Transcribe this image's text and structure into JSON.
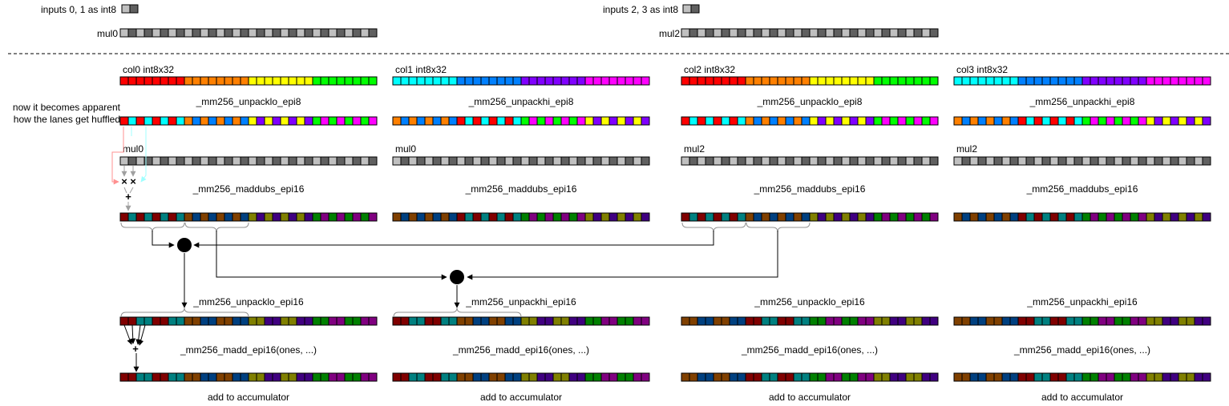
{
  "header": {
    "inputs_a_label": "inputs 0, 1 as int8",
    "inputs_b_label": "inputs 2, 3 as int8",
    "mul0_label": "mul0",
    "mul2_label": "mul2"
  },
  "annotation": {
    "line1": "now it becomes apparent",
    "line2": "how the lanes get huffled"
  },
  "columns": [
    {
      "title": "col0 int8x32",
      "unpack8": "_mm256_unpacklo_epi8",
      "mul": "mul0",
      "maddubs": "_mm256_maddubs_epi16",
      "unpack16": "_mm256_unpacklo_epi16",
      "madd": "_mm256_madd_epi16(ones, ...)",
      "acc": "add to accumulator"
    },
    {
      "title": "col1 int8x32",
      "unpack8": "_mm256_unpackhi_epi8",
      "mul": "mul0",
      "maddubs": "_mm256_maddubs_epi16",
      "unpack16": "_mm256_unpackhi_epi16",
      "madd": "_mm256_madd_epi16(ones, ...)",
      "acc": "add to accumulator"
    },
    {
      "title": "col2 int8x32",
      "unpack8": "_mm256_unpacklo_epi8",
      "mul": "mul2",
      "maddubs": "_mm256_maddubs_epi16",
      "unpack16": "_mm256_unpacklo_epi16",
      "madd": "_mm256_madd_epi16(ones, ...)",
      "acc": "add to accumulator"
    },
    {
      "title": "col3 int8x32",
      "unpack8": "_mm256_unpackhi_epi8",
      "mul": "mul2",
      "maddubs": "_mm256_maddubs_epi16",
      "unpack16": "_mm256_unpackhi_epi16",
      "madd": "_mm256_madd_epi16(ones, ...)",
      "acc": "add to accumulator"
    }
  ],
  "op_symbols": {
    "multiply": "×",
    "add": "+"
  },
  "colors": {
    "red": "#ff0000",
    "orange": "#ff8000",
    "yellow": "#ffff00",
    "green": "#00ff00",
    "cyan": "#00ffff",
    "blue": "#0080ff",
    "violet": "#8000ff",
    "magenta": "#ff00ff",
    "gray_light": "#c0c0c0",
    "gray_dark": "#606060",
    "dark_red": "#800000",
    "dark_orange": "#804000",
    "dark_olive": "#808000",
    "dark_green": "#008000",
    "teal": "#008080",
    "navy": "#004080",
    "purple": "#400080",
    "dark_magenta": "#800080",
    "ring": "#000000",
    "arrow_gray": "#a0a0a0",
    "arrow_pink": "#ff9090",
    "arrow_cyan": "#a0ffff"
  }
}
